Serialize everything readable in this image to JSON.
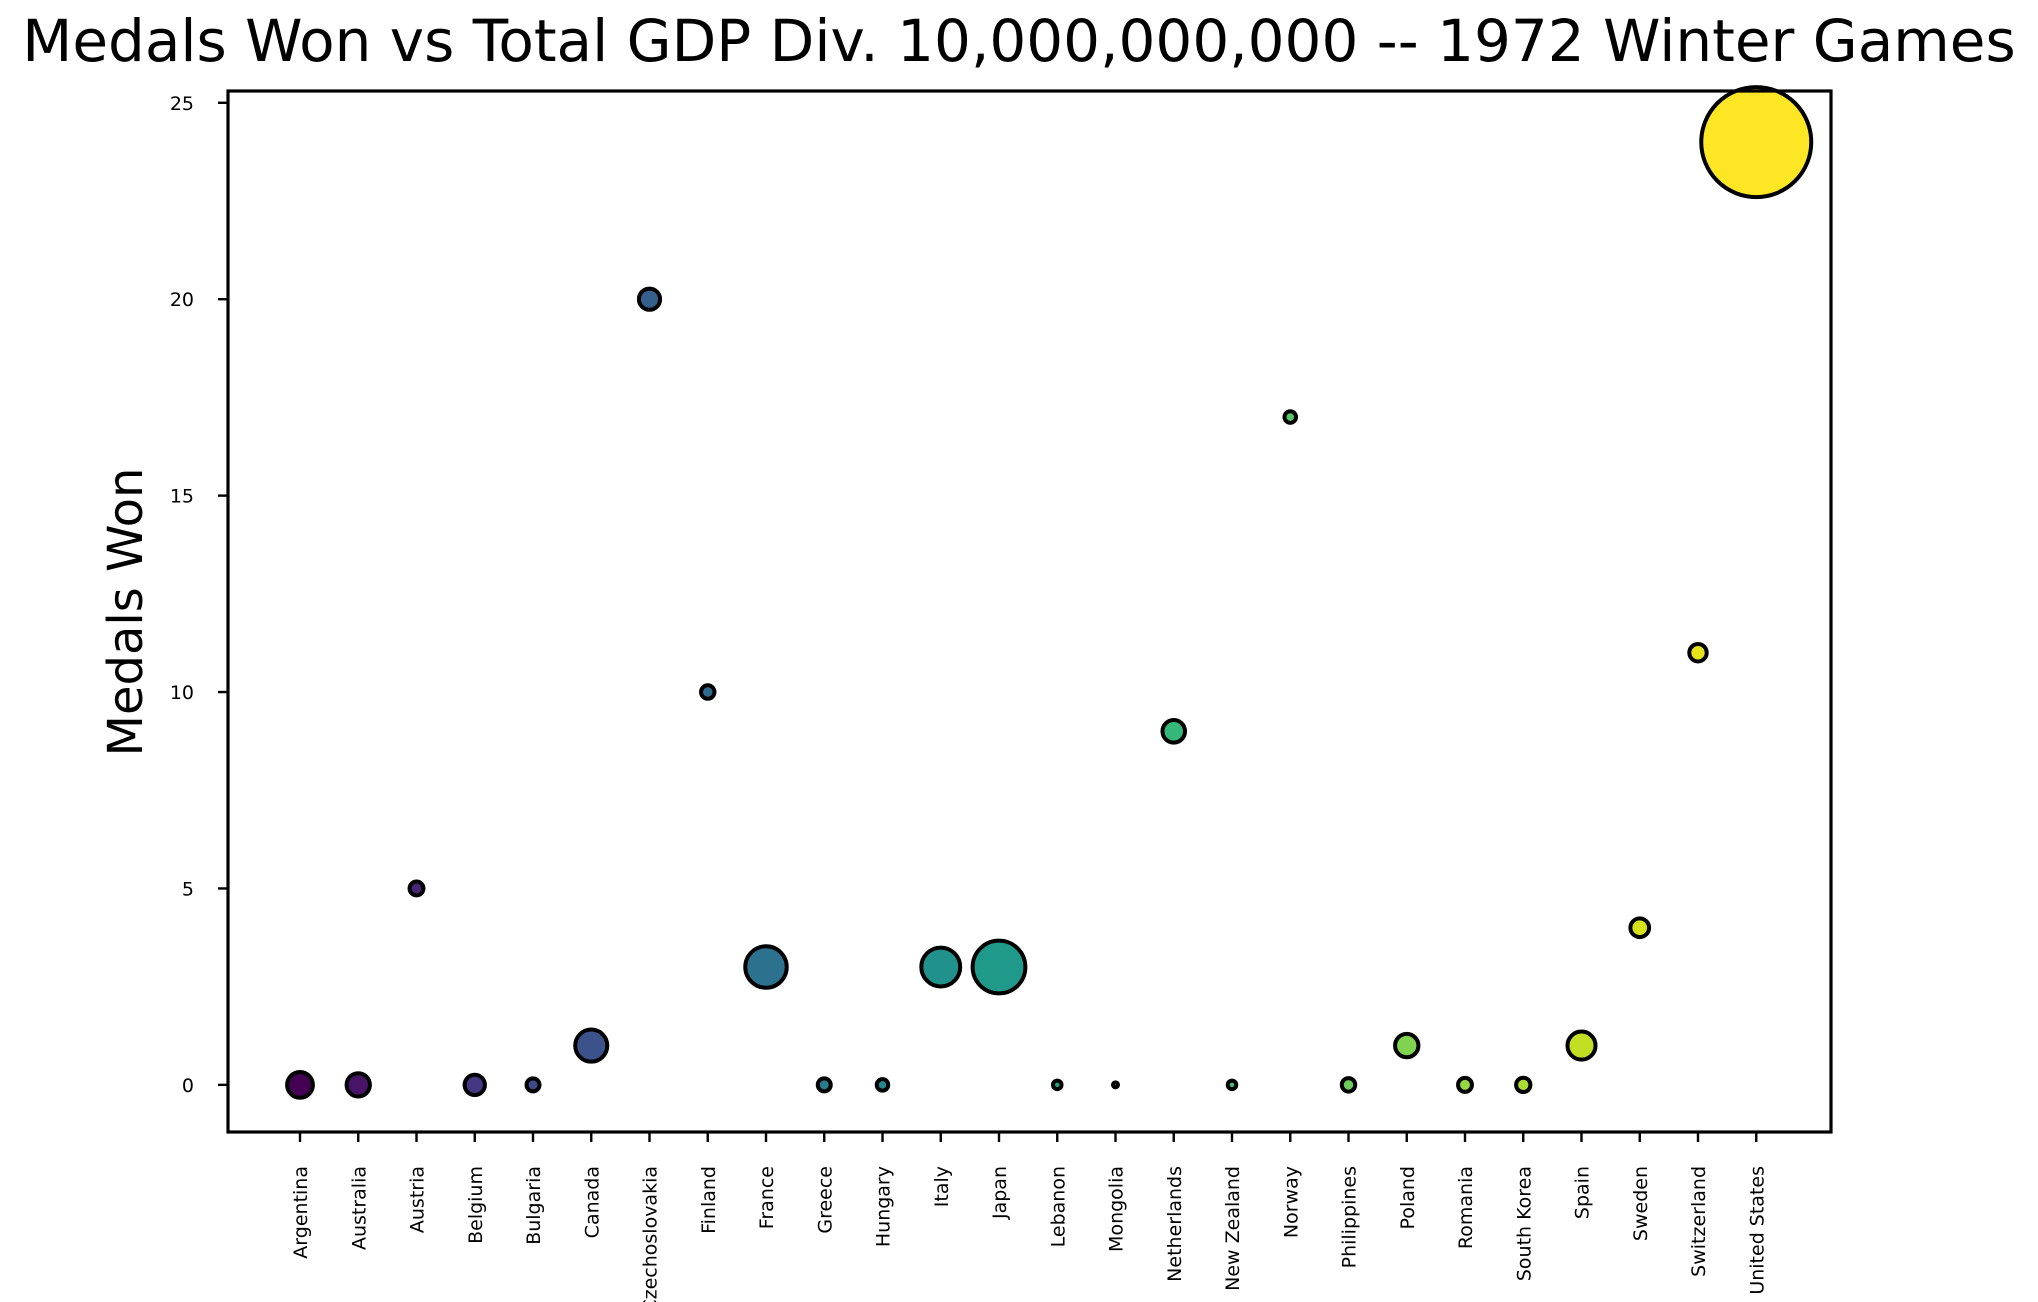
{
  "chart_data": {
    "type": "scatter",
    "title": "Medals Won vs Total GDP Div. 10,000,000,000 -- 1972 Winter Games",
    "ylabel": "Medals Won",
    "xlabel": "",
    "ylim": [
      -1.2,
      25.3
    ],
    "yticks": [
      0,
      5,
      10,
      15,
      20,
      25
    ],
    "grid": false,
    "legend": "none",
    "colormap": "viridis",
    "categories": [
      "Argentina",
      "Australia",
      "Austria",
      "Belgium",
      "Bulgaria",
      "Canada",
      "Czechoslovakia",
      "Finland",
      "France",
      "Greece",
      "Hungary",
      "Italy",
      "Japan",
      "Lebanon",
      "Mongolia",
      "Netherlands",
      "New Zealand",
      "Norway",
      "Philippines",
      "Poland",
      "Romania",
      "South Korea",
      "Spain",
      "Sweden",
      "Switzerland",
      "United States"
    ],
    "values": [
      0,
      0,
      5,
      0,
      0,
      1,
      20,
      10,
      3,
      0,
      0,
      3,
      3,
      0,
      0,
      9,
      0,
      17,
      0,
      1,
      0,
      0,
      1,
      4,
      11,
      24
    ],
    "bubble_size": [
      5.5,
      4.5,
      1.6,
      3.4,
      1.4,
      8.5,
      3.7,
      1.5,
      14.2,
      1.4,
      1.1,
      12.5,
      23.0,
      0.6,
      0.1,
      4.2,
      0.6,
      1.1,
      1.5,
      4.5,
      1.6,
      1.7,
      6.5,
      2.9,
      2.5,
      100.0
    ],
    "colors": [
      "#440154",
      "#481467",
      "#482576",
      "#453781",
      "#3f4889",
      "#3b528b",
      "#355f8d",
      "#306a8e",
      "#2c728e",
      "#287c8e",
      "#24868e",
      "#21918c",
      "#1f9a8a",
      "#22a785",
      "#2ab07f",
      "#35b779",
      "#44bf70",
      "#56c667",
      "#6ccd5a",
      "#7fd34e",
      "#95d840",
      "#aadc32",
      "#c2df23",
      "#d8e219",
      "#e7e419",
      "#fde725"
    ]
  }
}
